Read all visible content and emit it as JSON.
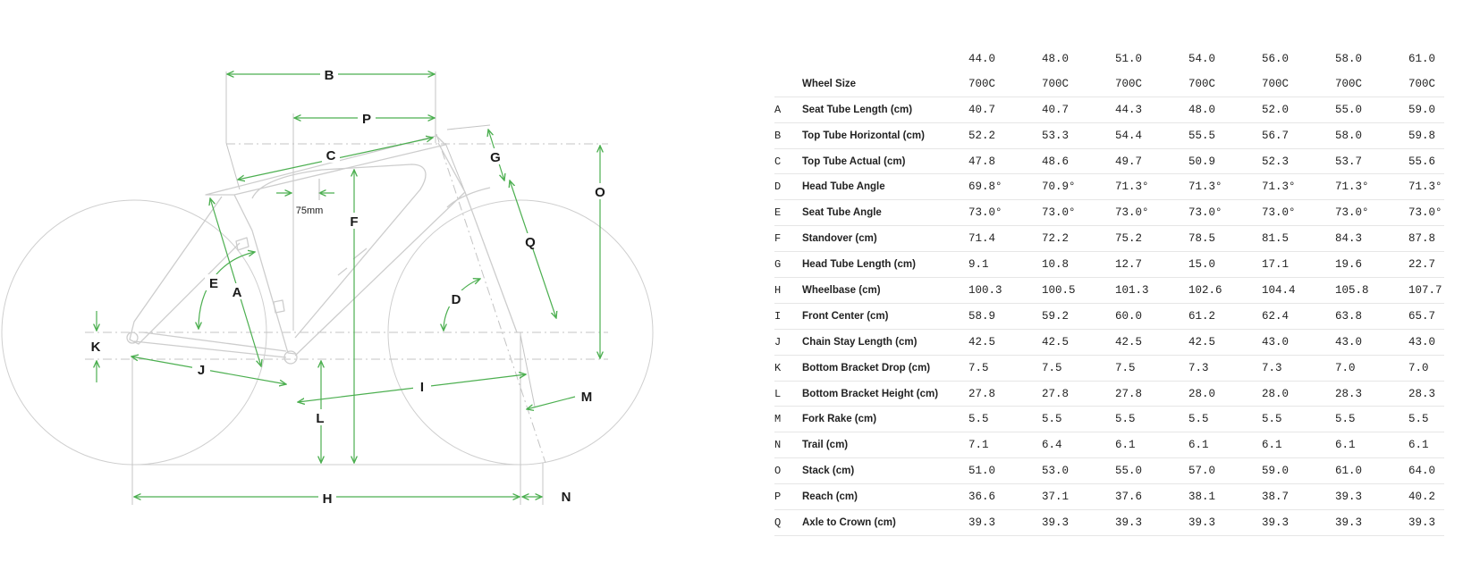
{
  "diagram": {
    "labels": [
      "A",
      "B",
      "C",
      "D",
      "E",
      "F",
      "G",
      "H",
      "I",
      "J",
      "K",
      "L",
      "M",
      "N",
      "O",
      "P",
      "Q"
    ],
    "annotation_75mm": "75mm",
    "colors": {
      "dimension": "#4caf50",
      "frame": "#c9c9c9",
      "guide": "#bdbdbd"
    }
  },
  "table": {
    "sizes": [
      "44.0",
      "48.0",
      "51.0",
      "54.0",
      "56.0",
      "58.0",
      "61.0"
    ],
    "rows": [
      {
        "letter": "",
        "label": "Wheel Size",
        "values": [
          "700C",
          "700C",
          "700C",
          "700C",
          "700C",
          "700C",
          "700C"
        ]
      },
      {
        "letter": "A",
        "label": "Seat Tube Length (cm)",
        "values": [
          "40.7",
          "40.7",
          "44.3",
          "48.0",
          "52.0",
          "55.0",
          "59.0"
        ]
      },
      {
        "letter": "B",
        "label": "Top Tube Horizontal (cm)",
        "values": [
          "52.2",
          "53.3",
          "54.4",
          "55.5",
          "56.7",
          "58.0",
          "59.8"
        ]
      },
      {
        "letter": "C",
        "label": "Top Tube Actual (cm)",
        "values": [
          "47.8",
          "48.6",
          "49.7",
          "50.9",
          "52.3",
          "53.7",
          "55.6"
        ]
      },
      {
        "letter": "D",
        "label": "Head Tube Angle",
        "values": [
          "69.8°",
          "70.9°",
          "71.3°",
          "71.3°",
          "71.3°",
          "71.3°",
          "71.3°"
        ]
      },
      {
        "letter": "E",
        "label": "Seat Tube Angle",
        "values": [
          "73.0°",
          "73.0°",
          "73.0°",
          "73.0°",
          "73.0°",
          "73.0°",
          "73.0°"
        ]
      },
      {
        "letter": "F",
        "label": "Standover (cm)",
        "values": [
          "71.4",
          "72.2",
          "75.2",
          "78.5",
          "81.5",
          "84.3",
          "87.8"
        ]
      },
      {
        "letter": "G",
        "label": "Head Tube Length (cm)",
        "values": [
          "9.1",
          "10.8",
          "12.7",
          "15.0",
          "17.1",
          "19.6",
          "22.7"
        ]
      },
      {
        "letter": "H",
        "label": "Wheelbase (cm)",
        "values": [
          "100.3",
          "100.5",
          "101.3",
          "102.6",
          "104.4",
          "105.8",
          "107.7"
        ]
      },
      {
        "letter": "I",
        "label": "Front Center (cm)",
        "values": [
          "58.9",
          "59.2",
          "60.0",
          "61.2",
          "62.4",
          "63.8",
          "65.7"
        ]
      },
      {
        "letter": "J",
        "label": "Chain Stay Length (cm)",
        "values": [
          "42.5",
          "42.5",
          "42.5",
          "42.5",
          "43.0",
          "43.0",
          "43.0"
        ]
      },
      {
        "letter": "K",
        "label": "Bottom Bracket Drop (cm)",
        "values": [
          "7.5",
          "7.5",
          "7.5",
          "7.3",
          "7.3",
          "7.0",
          "7.0"
        ]
      },
      {
        "letter": "L",
        "label": "Bottom Bracket Height (cm)",
        "values": [
          "27.8",
          "27.8",
          "27.8",
          "28.0",
          "28.0",
          "28.3",
          "28.3"
        ]
      },
      {
        "letter": "M",
        "label": "Fork Rake (cm)",
        "values": [
          "5.5",
          "5.5",
          "5.5",
          "5.5",
          "5.5",
          "5.5",
          "5.5"
        ]
      },
      {
        "letter": "N",
        "label": "Trail (cm)",
        "values": [
          "7.1",
          "6.4",
          "6.1",
          "6.1",
          "6.1",
          "6.1",
          "6.1"
        ]
      },
      {
        "letter": "O",
        "label": "Stack (cm)",
        "values": [
          "51.0",
          "53.0",
          "55.0",
          "57.0",
          "59.0",
          "61.0",
          "64.0"
        ]
      },
      {
        "letter": "P",
        "label": "Reach (cm)",
        "values": [
          "36.6",
          "37.1",
          "37.6",
          "38.1",
          "38.7",
          "39.3",
          "40.2"
        ]
      },
      {
        "letter": "Q",
        "label": "Axle to Crown (cm)",
        "values": [
          "39.3",
          "39.3",
          "39.3",
          "39.3",
          "39.3",
          "39.3",
          "39.3"
        ]
      }
    ]
  }
}
